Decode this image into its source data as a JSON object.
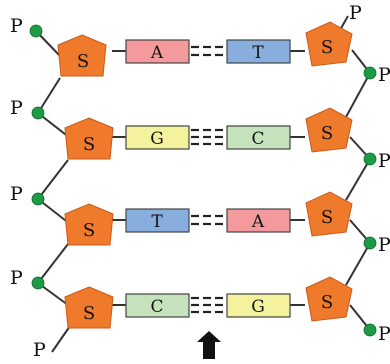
{
  "labels": {
    "phosphate": "P",
    "sugar": "S"
  },
  "rows": [
    {
      "left_base": "A",
      "right_base": "T"
    },
    {
      "left_base": "G",
      "right_base": "C"
    },
    {
      "left_base": "T",
      "right_base": "A"
    },
    {
      "left_base": "C",
      "right_base": "G"
    }
  ],
  "colors": {
    "sugar": "#f07a2c",
    "phosphate": "#1c9a44",
    "A": "#f49a9c",
    "T": "#88aede",
    "G": "#f4f29c",
    "C": "#c6e2bc"
  }
}
